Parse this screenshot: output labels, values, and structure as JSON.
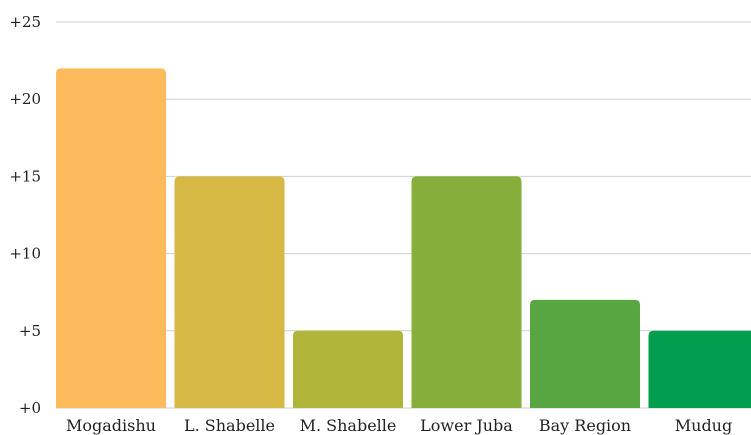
{
  "chart_data": {
    "type": "bar",
    "categories": [
      "Mogadishu",
      "L. Shabelle",
      "M. Shabelle",
      "Lower Juba",
      "Bay Region",
      "Mudug"
    ],
    "values": [
      22,
      15,
      5,
      15,
      7,
      5
    ],
    "colors": [
      "#FDBB5B",
      "#D6B945",
      "#B1B53A",
      "#86AE3A",
      "#57A642",
      "#039D4F"
    ],
    "yticks": [
      "+0",
      "+5",
      "+10",
      "+15",
      "+20",
      "+25"
    ],
    "ylim": [
      0,
      25
    ],
    "grid": true,
    "title": "",
    "xlabel": "",
    "ylabel": ""
  }
}
